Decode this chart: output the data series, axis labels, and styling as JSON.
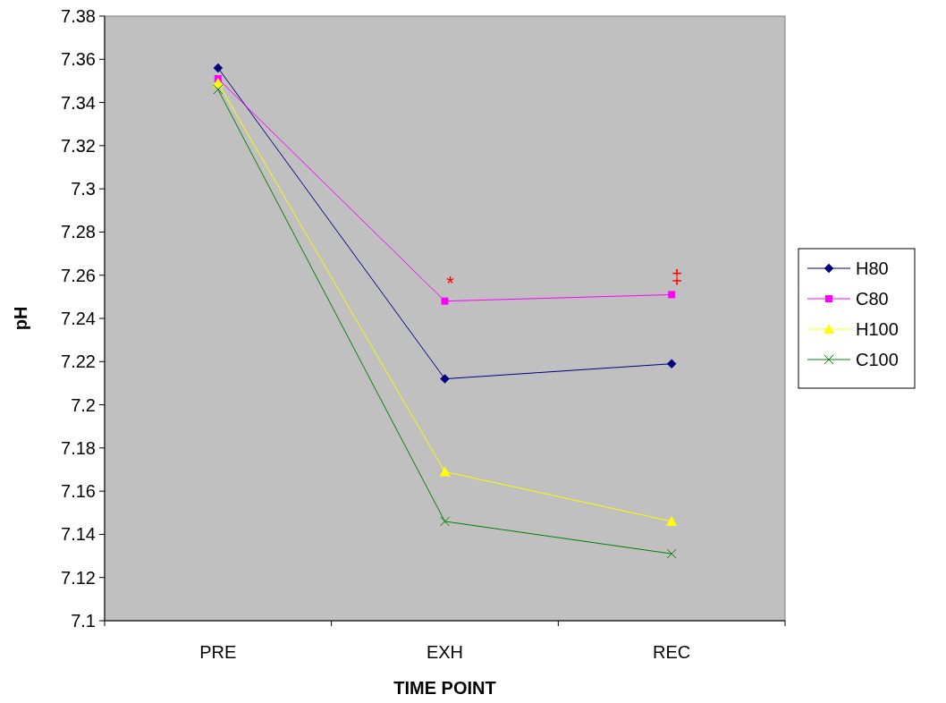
{
  "chart_data": {
    "type": "line",
    "xlabel": "TIME POINT",
    "ylabel": "pH",
    "categories": [
      "PRE",
      "EXH",
      "REC"
    ],
    "series": [
      {
        "name": "H80",
        "color": "#000080",
        "marker": "diamond",
        "values": [
          7.356,
          7.212,
          7.219
        ]
      },
      {
        "name": "C80",
        "color": "#ff00ff",
        "marker": "square",
        "values": [
          7.351,
          7.248,
          7.251
        ]
      },
      {
        "name": "H100",
        "color": "#ffff00",
        "marker": "triangle",
        "values": [
          7.349,
          7.169,
          7.146
        ]
      },
      {
        "name": "C100",
        "color": "#008000",
        "marker": "cross",
        "values": [
          7.346,
          7.146,
          7.131
        ]
      }
    ],
    "ylim": [
      7.1,
      7.38
    ],
    "yticks": [
      7.1,
      7.12,
      7.14,
      7.16,
      7.18,
      7.2,
      7.22,
      7.24,
      7.26,
      7.28,
      7.3,
      7.32,
      7.34,
      7.36,
      7.38
    ],
    "annotations": [
      "*",
      "‡"
    ],
    "grid": false,
    "legend": "right"
  }
}
